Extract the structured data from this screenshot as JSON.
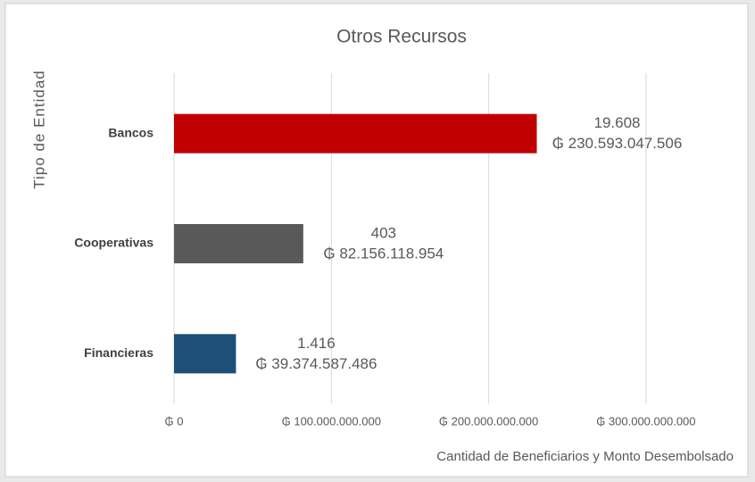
{
  "chart_data": {
    "type": "bar",
    "orientation": "horizontal",
    "title": "Otros Recursos",
    "x_label": "Cantidad de Beneficiarios y Monto Desembolsado",
    "y_label": "Tipo de Entidad",
    "categories": [
      "Bancos",
      "Cooperativas",
      "Financieras"
    ],
    "values": [
      230593047506,
      82156118954,
      39374587486
    ],
    "value_labels": [
      "₲ 230.593.047.506",
      "₲ 82.156.118.954",
      "₲ 39.374.587.486"
    ],
    "count_labels": [
      "19.608",
      "403",
      "1.416"
    ],
    "colors": [
      "#c00000",
      "#595959",
      "#1f4e79"
    ],
    "xlim": [
      0,
      350000000000
    ],
    "xticks": [
      {
        "value": 0,
        "label": "₲ 0"
      },
      {
        "value": 100000000000,
        "label": "₲ 100.000.000.000"
      },
      {
        "value": 200000000000,
        "label": "₲ 200.000.000.000"
      },
      {
        "value": 300000000000,
        "label": "₲ 300.000.000.000"
      }
    ],
    "grid": true
  }
}
